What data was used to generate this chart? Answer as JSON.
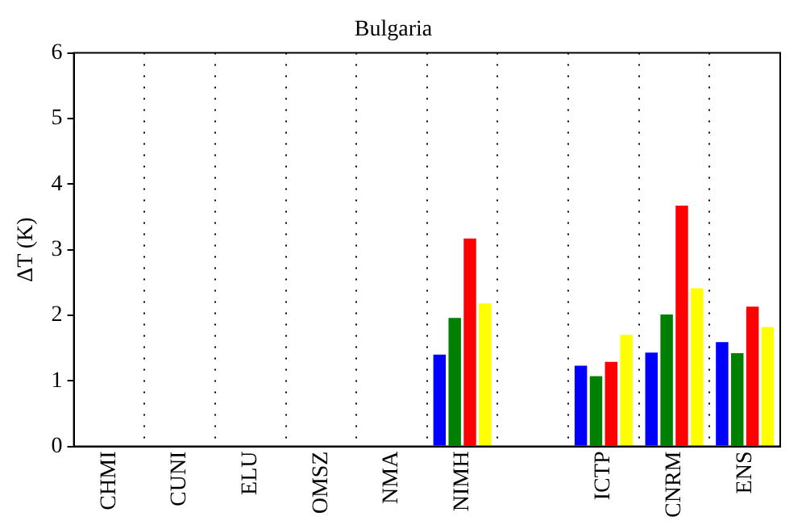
{
  "chart_data": {
    "type": "bar",
    "title": "Bulgaria",
    "ylabel": "ΔT (K)",
    "categories": [
      "CHMI",
      "CUNI",
      "ELU",
      "OMSZ",
      "NMA",
      "NIMH",
      null,
      "ICTP",
      "CNRM",
      "ENS"
    ],
    "series": [
      {
        "color": "#0000ff",
        "values": [
          null,
          null,
          null,
          null,
          null,
          1.4,
          null,
          1.23,
          1.43,
          1.59
        ]
      },
      {
        "color": "#008000",
        "values": [
          null,
          null,
          null,
          null,
          null,
          1.96,
          null,
          1.07,
          2.01,
          1.42
        ]
      },
      {
        "color": "#ff0000",
        "values": [
          null,
          null,
          null,
          null,
          null,
          3.17,
          null,
          1.29,
          3.67,
          2.13
        ]
      },
      {
        "color": "#ffff00",
        "values": [
          null,
          null,
          null,
          null,
          null,
          2.18,
          null,
          1.7,
          2.41,
          1.82
        ]
      }
    ],
    "ylim": [
      0,
      6
    ],
    "yticks": [
      0,
      1,
      2,
      3,
      4,
      5,
      6
    ],
    "grid": "x",
    "legend": false
  }
}
